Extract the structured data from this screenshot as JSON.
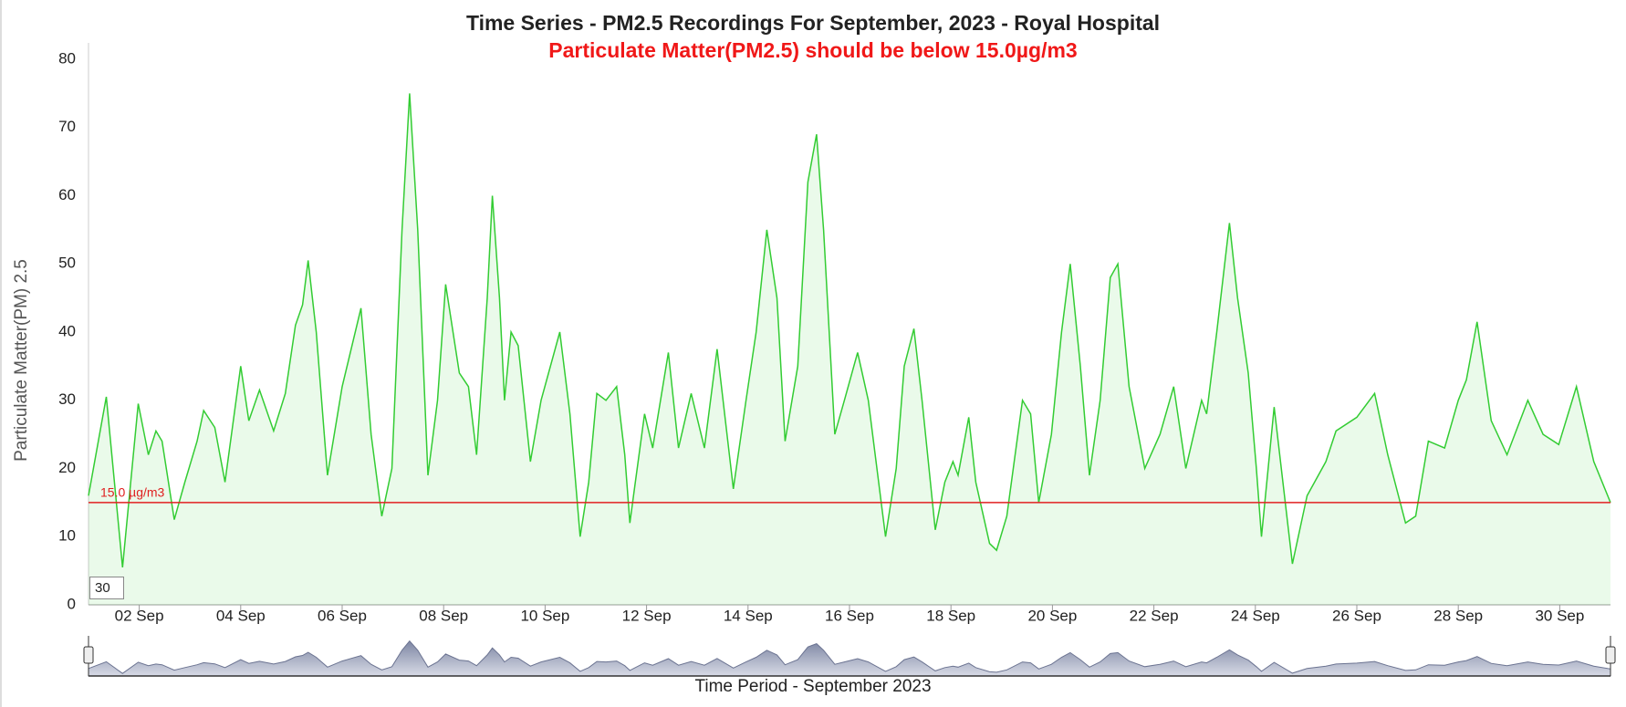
{
  "chart_data": {
    "type": "line",
    "title": "Time Series - PM2.5 Recordings For September, 2023 - Royal Hospital",
    "subtitle": "Particulate Matter(PM2.5) should be below 15.0µg/m3",
    "y_label": "Particulate Matter(PM) 2.5",
    "x_label": "Time Period - September 2023",
    "box_text": "30",
    "reference_line": {
      "value": 15,
      "label": "15.0 µg/m3",
      "color": "#e02020"
    },
    "xlim": [
      1,
      31
    ],
    "xticks": [
      {
        "value": 2,
        "label": "02 Sep"
      },
      {
        "value": 4,
        "label": "04 Sep"
      },
      {
        "value": 6,
        "label": "06 Sep"
      },
      {
        "value": 8,
        "label": "08 Sep"
      },
      {
        "value": 10,
        "label": "10 Sep"
      },
      {
        "value": 12,
        "label": "12 Sep"
      },
      {
        "value": 14,
        "label": "14 Sep"
      },
      {
        "value": 16,
        "label": "16 Sep"
      },
      {
        "value": 18,
        "label": "18 Sep"
      },
      {
        "value": 20,
        "label": "20 Sep"
      },
      {
        "value": 22,
        "label": "22 Sep"
      },
      {
        "value": 24,
        "label": "24 Sep"
      },
      {
        "value": 26,
        "label": "26 Sep"
      },
      {
        "value": 28,
        "label": "28 Sep"
      },
      {
        "value": 30,
        "label": "30 Sep"
      }
    ],
    "ylim": [
      0,
      80
    ],
    "yticks": [
      0,
      10,
      20,
      30,
      40,
      50,
      60,
      70,
      80
    ],
    "grid": false,
    "color": "#33cc33",
    "x": [
      1.0,
      1.35,
      1.67,
      1.98,
      2.18,
      2.33,
      2.45,
      2.69,
      2.9,
      3.14,
      3.27,
      3.49,
      3.69,
      4.0,
      4.16,
      4.37,
      4.65,
      4.88,
      5.08,
      5.22,
      5.33,
      5.49,
      5.71,
      6.0,
      6.37,
      6.57,
      6.78,
      6.98,
      7.18,
      7.33,
      7.49,
      7.69,
      7.88,
      8.04,
      8.31,
      8.49,
      8.65,
      8.86,
      8.96,
      9.1,
      9.2,
      9.33,
      9.47,
      9.71,
      9.92,
      10.29,
      10.49,
      10.69,
      10.86,
      11.02,
      11.2,
      11.41,
      11.57,
      11.67,
      11.76,
      11.96,
      12.12,
      12.43,
      12.63,
      12.88,
      13.14,
      13.39,
      13.71,
      13.96,
      14.16,
      14.37,
      14.57,
      14.73,
      14.98,
      15.18,
      15.35,
      15.49,
      15.71,
      15.9,
      16.16,
      16.37,
      16.71,
      16.92,
      17.08,
      17.27,
      17.43,
      17.69,
      17.88,
      18.04,
      18.14,
      18.35,
      18.49,
      18.76,
      18.9,
      19.1,
      19.41,
      19.57,
      19.73,
      19.98,
      20.18,
      20.35,
      20.55,
      20.73,
      20.94,
      21.14,
      21.29,
      21.51,
      21.82,
      22.12,
      22.39,
      22.63,
      22.94,
      23.04,
      23.24,
      23.49,
      23.65,
      23.86,
      24.02,
      24.12,
      24.37,
      24.73,
      25.02,
      25.39,
      25.59,
      26.0,
      26.35,
      26.61,
      26.96,
      27.16,
      27.41,
      27.73,
      28.0,
      28.16,
      28.37,
      28.65,
      28.96,
      29.37,
      29.67,
      29.98,
      30.33,
      30.67,
      31.0
    ],
    "values": [
      16,
      30.5,
      5.5,
      29.5,
      22,
      25.5,
      24,
      12.5,
      18,
      24,
      28.5,
      26,
      18,
      35,
      27,
      31.5,
      25.5,
      31,
      41,
      44,
      50.5,
      40,
      19,
      32,
      43.5,
      25,
      13,
      20,
      55,
      75,
      55,
      19,
      30,
      47,
      34,
      32,
      22,
      45,
      60,
      45,
      30,
      40,
      38,
      21,
      30,
      40,
      28,
      10,
      18,
      31,
      30,
      32,
      22,
      12,
      17,
      28,
      23,
      37,
      23,
      31,
      23,
      37.5,
      17,
      30,
      40,
      55,
      45,
      24,
      35,
      62,
      69,
      55,
      25,
      30,
      37,
      30,
      10,
      20,
      35,
      40.5,
      30,
      11,
      18,
      21,
      19,
      27.5,
      18,
      9,
      8,
      13,
      30,
      28,
      15,
      25,
      40,
      50,
      35,
      19,
      30,
      48,
      50,
      32,
      20,
      25,
      32,
      20,
      30,
      28,
      40,
      56,
      45,
      34,
      20,
      10,
      29,
      6,
      16,
      21,
      25.5,
      27.5,
      31,
      22,
      12,
      13,
      24,
      23,
      30,
      33,
      41.5,
      27,
      22,
      30,
      25,
      23.5,
      32,
      21,
      15
    ]
  }
}
